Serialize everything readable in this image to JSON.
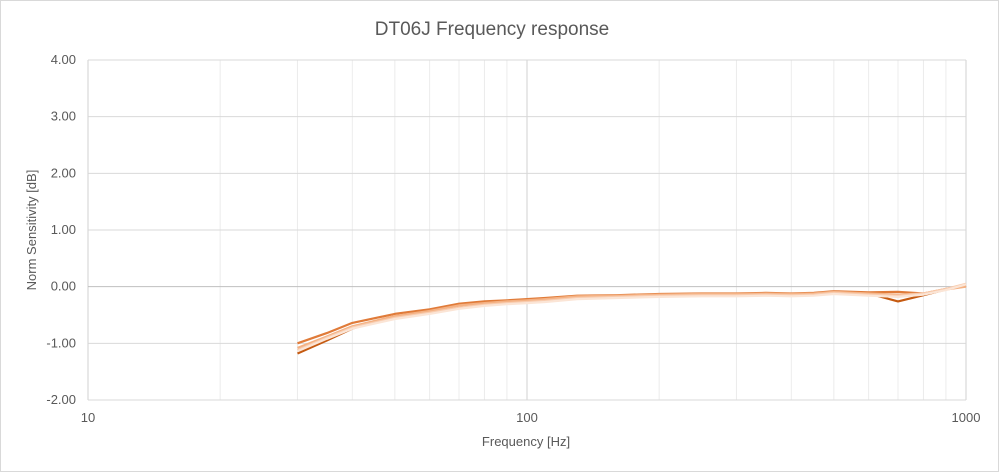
{
  "chart_data": {
    "type": "line",
    "title": "DT06J Frequency  response",
    "xlabel": "Frequency [Hz]",
    "ylabel": "Norm Sensitivity [dB]",
    "x_scale": "log",
    "xlim": [
      10,
      1000
    ],
    "ylim": [
      -2,
      4
    ],
    "x_ticks": [
      "10",
      "100",
      "1000"
    ],
    "y_ticks": [
      "4.00",
      "3.00",
      "2.00",
      "1.00",
      "0.00",
      "-1.00",
      "-2.00"
    ],
    "grid": true,
    "legend": "none",
    "series": [
      {
        "color": "#c55a11",
        "x": [
          30,
          35,
          40,
          50,
          60,
          70,
          80,
          90,
          100,
          110,
          130,
          160,
          200,
          250,
          300,
          350,
          400,
          450,
          500,
          600,
          700,
          800,
          900,
          1000
        ],
        "y": [
          -1.18,
          -0.95,
          -0.74,
          -0.53,
          -0.44,
          -0.34,
          -0.3,
          -0.26,
          -0.24,
          -0.22,
          -0.18,
          -0.16,
          -0.14,
          -0.13,
          -0.13,
          -0.12,
          -0.13,
          -0.12,
          -0.1,
          -0.12,
          -0.26,
          -0.15,
          -0.05,
          0.02
        ]
      },
      {
        "color": "#e07b39",
        "x": [
          30,
          35,
          40,
          50,
          60,
          70,
          80,
          90,
          100,
          110,
          130,
          160,
          200,
          250,
          300,
          350,
          400,
          450,
          500,
          600,
          700,
          800,
          900,
          1000
        ],
        "y": [
          -1.0,
          -0.82,
          -0.64,
          -0.48,
          -0.4,
          -0.3,
          -0.26,
          -0.24,
          -0.22,
          -0.2,
          -0.16,
          -0.15,
          -0.13,
          -0.12,
          -0.12,
          -0.11,
          -0.12,
          -0.11,
          -0.08,
          -0.1,
          -0.09,
          -0.12,
          -0.04,
          0.01
        ]
      },
      {
        "color": "#f4b183",
        "x": [
          30,
          35,
          40,
          50,
          60,
          70,
          80,
          90,
          100,
          110,
          130,
          160,
          200,
          250,
          300,
          350,
          400,
          450,
          500,
          600,
          700,
          800,
          900,
          1000
        ],
        "y": [
          -1.08,
          -0.88,
          -0.7,
          -0.52,
          -0.43,
          -0.33,
          -0.29,
          -0.26,
          -0.24,
          -0.22,
          -0.17,
          -0.16,
          -0.14,
          -0.13,
          -0.13,
          -0.12,
          -0.13,
          -0.12,
          -0.09,
          -0.12,
          -0.14,
          -0.12,
          -0.05,
          0.0
        ]
      },
      {
        "color": "#f8cbad",
        "x": [
          30,
          35,
          40,
          50,
          60,
          70,
          80,
          90,
          100,
          110,
          130,
          160,
          200,
          250,
          300,
          350,
          400,
          450,
          500,
          600,
          700,
          800,
          900,
          1000
        ],
        "y": [
          -1.12,
          -0.9,
          -0.72,
          -0.55,
          -0.46,
          -0.37,
          -0.32,
          -0.29,
          -0.27,
          -0.25,
          -0.2,
          -0.18,
          -0.16,
          -0.15,
          -0.15,
          -0.14,
          -0.15,
          -0.14,
          -0.11,
          -0.14,
          -0.16,
          -0.12,
          -0.04,
          0.05
        ]
      },
      {
        "color": "#fbe5d6",
        "x": [
          30,
          35,
          40,
          50,
          60,
          70,
          80,
          90,
          100,
          110,
          130,
          160,
          200,
          250,
          300,
          350,
          400,
          450,
          500,
          600,
          700,
          800,
          900,
          1000
        ],
        "y": [
          -1.14,
          -0.92,
          -0.74,
          -0.57,
          -0.48,
          -0.39,
          -0.34,
          -0.31,
          -0.29,
          -0.27,
          -0.22,
          -0.2,
          -0.18,
          -0.17,
          -0.17,
          -0.16,
          -0.17,
          -0.16,
          -0.13,
          -0.16,
          -0.18,
          -0.14,
          -0.06,
          0.04
        ]
      }
    ]
  }
}
